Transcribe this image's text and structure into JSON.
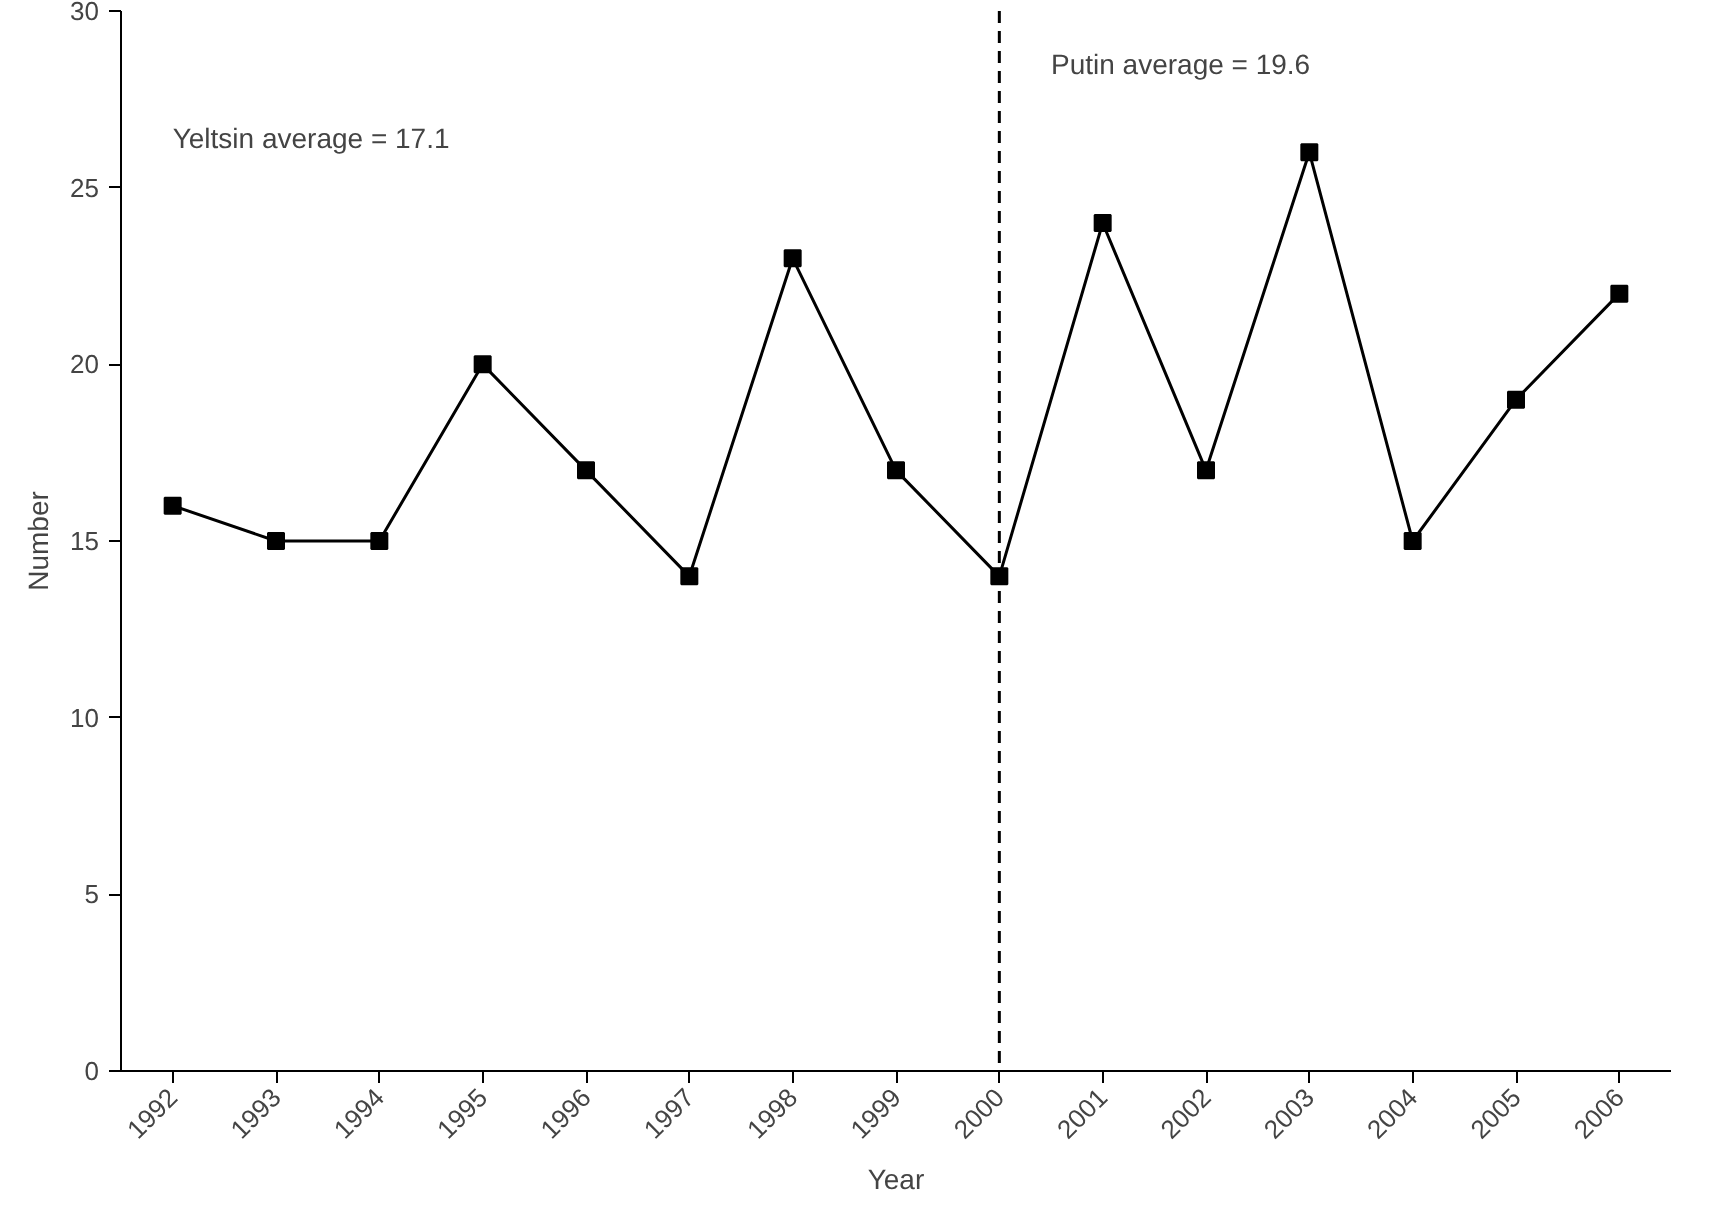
{
  "chart_data": {
    "type": "line",
    "xlabel": "Year",
    "ylabel": "Number",
    "categories": [
      "1992",
      "1993",
      "1994",
      "1995",
      "1996",
      "1997",
      "1998",
      "1999",
      "2000",
      "2001",
      "2002",
      "2003",
      "2004",
      "2005",
      "2006"
    ],
    "series": [
      {
        "color": "#000000",
        "values": [
          16,
          15,
          15,
          20,
          17,
          14,
          23,
          17,
          14,
          24,
          17,
          26,
          15,
          19,
          22
        ]
      }
    ],
    "ylim": [
      0,
      30
    ],
    "yticks": [
      0,
      5,
      10,
      15,
      20,
      25,
      30
    ],
    "ref_lines": [
      {
        "axis": "x",
        "value": "2000",
        "color": "#000000",
        "line_style": "dashed"
      }
    ],
    "annotations": [
      "Yeltsin average = 17.1",
      "Putin average = 19.6"
    ],
    "marker": "square",
    "line_style": "solid",
    "grid": false
  }
}
